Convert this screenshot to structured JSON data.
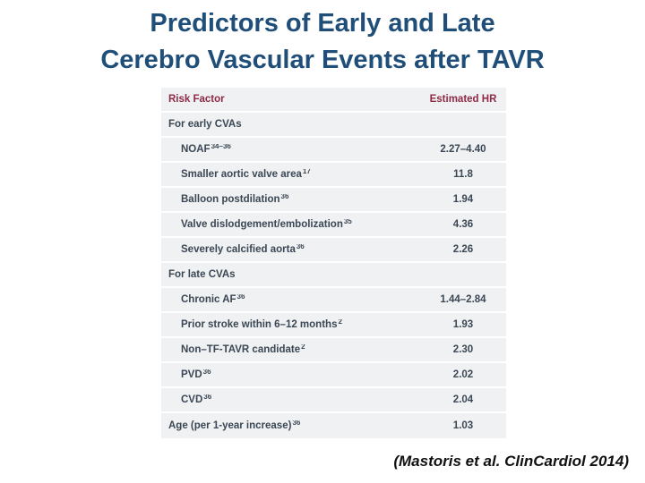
{
  "slide": {
    "title_line1": "Predictors of Early and Late",
    "title_line2": "Cerebro Vascular Events after TAVR",
    "citation": "(Mastoris et al. ClinCardiol 2014)"
  },
  "colors": {
    "title_blue": "#1f4e79",
    "table_header_maroon": "#8e2a45",
    "row_background": "#f0f1f3",
    "body_text": "#3a4754",
    "citation_text": "#111111"
  },
  "chart_data": {
    "type": "table",
    "title": "Predictors of Early and Late Cerebro Vascular Events after TAVR",
    "columns": [
      "Risk Factor",
      "Estimated HR"
    ],
    "rows": [
      {
        "label": "For early CVAs",
        "sup": "",
        "value": "",
        "kind": "section"
      },
      {
        "label": "NOAF",
        "sup": "34–36",
        "value": "2.27–4.40",
        "kind": "item"
      },
      {
        "label": "Smaller aortic valve area",
        "sup": "17",
        "value": "11.8",
        "kind": "item"
      },
      {
        "label": "Balloon postdilation",
        "sup": "36",
        "value": "1.94",
        "kind": "item"
      },
      {
        "label": "Valve dislodgement/embolization",
        "sup": "35",
        "value": "4.36",
        "kind": "item"
      },
      {
        "label": "Severely calcified aorta",
        "sup": "36",
        "value": "2.26",
        "kind": "item"
      },
      {
        "label": "For late CVAs",
        "sup": "",
        "value": "",
        "kind": "section"
      },
      {
        "label": "Chronic AF",
        "sup": "36",
        "value": "1.44–2.84",
        "kind": "item"
      },
      {
        "label": "Prior stroke within 6–12 months",
        "sup": "2",
        "value": "1.93",
        "kind": "item"
      },
      {
        "label": "Non–TF-TAVR candidate",
        "sup": "2",
        "value": "2.30",
        "kind": "item"
      },
      {
        "label": "PVD",
        "sup": "36",
        "value": "2.02",
        "kind": "item"
      },
      {
        "label": "CVD",
        "sup": "36",
        "value": "2.04",
        "kind": "item"
      },
      {
        "label": "Age (per 1-year increase)",
        "sup": "36",
        "value": "1.03",
        "kind": "section-item"
      }
    ]
  }
}
